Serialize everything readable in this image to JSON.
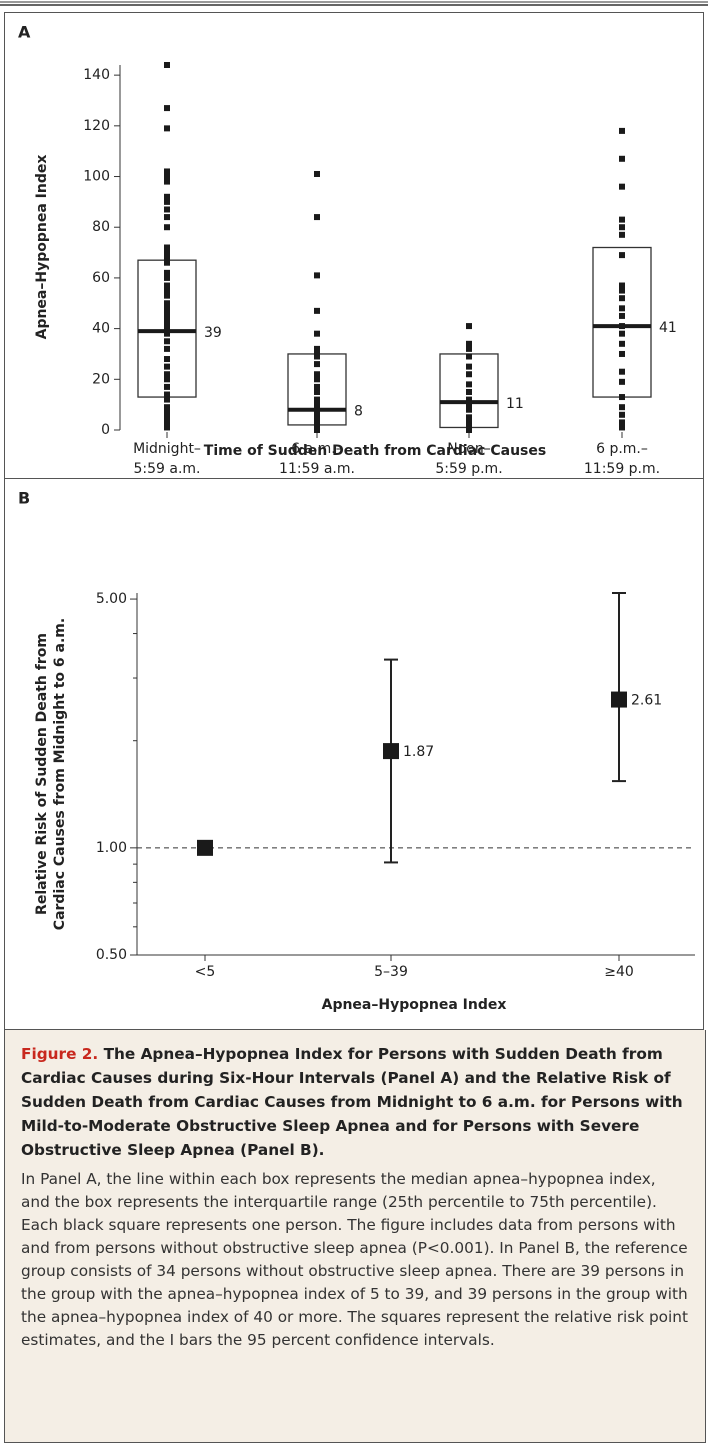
{
  "chart_data": [
    {
      "type": "box",
      "title": "A",
      "ylabel": "Apnea–Hypopnea Index",
      "xlabel": "Time of Sudden Death from Cardiac Causes",
      "categories": [
        [
          "Midnight–",
          "5:59 a.m."
        ],
        [
          "6 a.m.–",
          "11:59 a.m."
        ],
        [
          "Noon–",
          "5:59 p.m."
        ],
        [
          "6 p.m.–",
          "11:59 p.m."
        ]
      ],
      "ylim": [
        0,
        144
      ],
      "yticks": [
        0,
        20,
        40,
        60,
        80,
        100,
        120,
        140
      ],
      "color": "#1a1a1a",
      "boxes": [
        {
          "q1": 13,
          "median": 39,
          "q3": 67,
          "points": [
            144,
            127,
            119,
            102,
            100,
            98,
            92,
            90,
            87,
            84,
            80,
            72,
            70,
            68,
            66,
            62,
            60,
            57,
            55,
            53,
            50,
            48,
            46,
            44,
            42,
            40,
            38,
            35,
            32,
            28,
            25,
            22,
            20,
            17,
            14,
            12,
            9,
            7,
            5,
            3,
            1
          ]
        },
        {
          "q1": 2,
          "median": 8,
          "q3": 30,
          "points": [
            101,
            84,
            61,
            47,
            38,
            32,
            30,
            29,
            26,
            22,
            20,
            17,
            15,
            12,
            10,
            8,
            6,
            4,
            2,
            1,
            0
          ]
        },
        {
          "q1": 1,
          "median": 11,
          "q3": 30,
          "points": [
            41,
            34,
            32,
            29,
            25,
            22,
            18,
            15,
            12,
            10,
            8,
            5,
            3,
            1,
            0
          ]
        },
        {
          "q1": 13,
          "median": 41,
          "q3": 72,
          "points": [
            118,
            107,
            96,
            83,
            80,
            77,
            69,
            57,
            55,
            52,
            48,
            45,
            41,
            38,
            34,
            30,
            23,
            19,
            13,
            9,
            6,
            3,
            1
          ]
        }
      ]
    },
    {
      "type": "errorbar",
      "title": "B",
      "ylabel": [
        "Relative Risk of Sudden Death from",
        "Cardiac Causes from Midnight to 6 a.m."
      ],
      "xlabel": "Apnea–Hypopnea Index",
      "categories": [
        "<5",
        "5–39",
        "≥40"
      ],
      "values": [
        1,
        1.87,
        2.61
      ],
      "ci_low": [
        null,
        0.91,
        1.54
      ],
      "ci_high": [
        null,
        3.38,
        5.2
      ],
      "labeled": [
        false,
        true,
        true
      ],
      "log": true,
      "reference_line": 1,
      "color": "#1a1a1a",
      "ylim": [
        0.5,
        5.2
      ],
      "yticks": [
        {
          "value": 0.5,
          "label": "0.50"
        },
        {
          "value": 1,
          "label": "1.00"
        },
        {
          "value": 5,
          "label": "5.00"
        }
      ],
      "yminorticks": [
        0.6,
        0.7,
        0.8,
        0.9,
        2,
        3,
        4
      ]
    }
  ],
  "caption": {
    "label": "Figure 2.",
    "title": "The Apnea–Hypopnea Index for Persons with Sudden Death from Cardiac Causes during Six-Hour Intervals (Panel A) and the Relative Risk of Sudden Death from Cardiac Causes from Midnight to 6 a.m. for Persons with Mild-to-Moderate Obstructive Sleep Apnea and for Persons with Severe Obstructive Sleep Apnea (Panel B).",
    "text": "In Panel A, the line within each box represents the median apnea–hypopnea index, and the box represents the interquartile range (25th percentile to 75th percentile). Each black square represents one person. The figure includes data from persons with and from persons without obstructive sleep apnea (P<0.001). In Panel B, the reference group consists of 34 persons without obstructive sleep apnea. There are 39 persons in the group with the apnea–hypopnea index of 5 to 39, and 39 persons in the group with the apnea–hypopnea index of 40 or more. The squares represent the relative risk point estimates, and the I bars the 95 percent confidence intervals."
  }
}
